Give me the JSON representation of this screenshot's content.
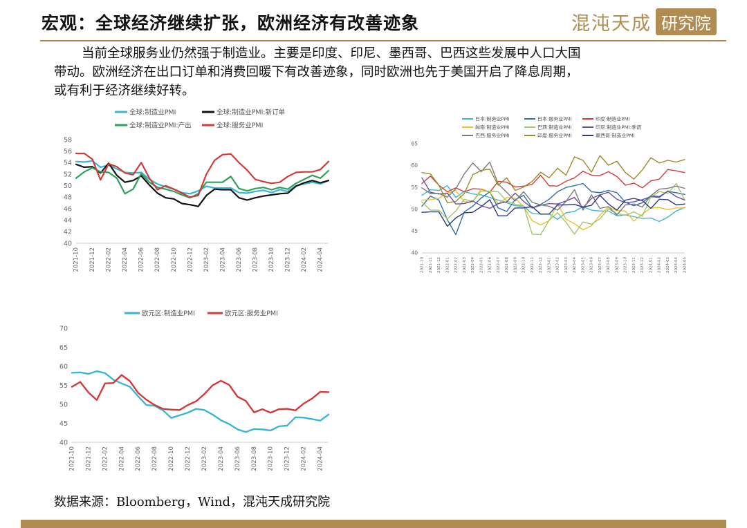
{
  "header": {
    "title": "宏观：全球经济继续扩张，欧洲经济有改善迹象",
    "logo_text": "混沌天成",
    "logo_box_text": "研究院"
  },
  "body_text": [
    "当前全球服务业仍然强于制造业。主要是印度、印尼、墨西哥、巴西这些发展中人口大国",
    "带动。欧洲经济在出口订单和消费回暖下有改善迹象，同时欧洲也先于美国开启了降息周期，",
    "或有利于经济继续好转。"
  ],
  "source": "数据来源：Bloomberg，Wind，混沌天成研究院",
  "colors": {
    "accent": "#b08c52"
  },
  "chart_data": [
    {
      "type": "line",
      "x": [
        "2021-10",
        "2021-11",
        "2021-12",
        "2022-01",
        "2022-02",
        "2022-03",
        "2022-04",
        "2022-05",
        "2022-06",
        "2022-07",
        "2022-08",
        "2022-09",
        "2022-10",
        "2022-11",
        "2022-12",
        "2023-01",
        "2023-02",
        "2023-03",
        "2023-04",
        "2023-05",
        "2023-06",
        "2023-07",
        "2023-08",
        "2023-09",
        "2023-10",
        "2023-11",
        "2023-12",
        "2024-01",
        "2024-02",
        "2024-03",
        "2024-04",
        "2024-05"
      ],
      "xticks": [
        "2021-10",
        "2021-12",
        "2022-02",
        "2022-04",
        "2022-06",
        "2022-08",
        "2022-10",
        "2022-12",
        "2023-02",
        "2023-04",
        "2023-06",
        "2023-08",
        "2023-10",
        "2023-12",
        "2024-02",
        "2024-04"
      ],
      "ylim": [
        40,
        58
      ],
      "yticks": [
        40,
        42,
        44,
        46,
        48,
        50,
        52,
        54,
        56,
        58
      ],
      "legend_placement": "top",
      "series": [
        {
          "name": "全球:制造业PMI",
          "color": "#3ab5d6",
          "values": [
            54.2,
            54.1,
            54.3,
            53.2,
            53.6,
            52.9,
            52.3,
            52.2,
            52.3,
            51.1,
            50.3,
            49.8,
            49.4,
            48.8,
            48.6,
            49.1,
            49.9,
            49.6,
            49.6,
            49.6,
            48.8,
            48.7,
            49.0,
            49.2,
            48.8,
            49.3,
            49.0,
            50.0,
            50.3,
            50.6,
            50.3,
            50.9
          ]
        },
        {
          "name": "全球:制造业PMI:新订单",
          "color": "#111111",
          "values": [
            53.7,
            53.2,
            53.3,
            52.2,
            53.9,
            51.8,
            50.6,
            50.9,
            51.7,
            50.1,
            48.7,
            47.9,
            47.7,
            46.9,
            46.7,
            46.4,
            48.3,
            49.4,
            49.3,
            49.3,
            47.9,
            47.5,
            47.9,
            48.2,
            48.4,
            48.6,
            48.7,
            49.9,
            50.5,
            50.9,
            50.5,
            50.9
          ]
        },
        {
          "name": "全球:制造业PMI:产出",
          "color": "#2ea05a",
          "values": [
            51.3,
            52.4,
            53.1,
            52.4,
            52.3,
            51.3,
            48.6,
            49.4,
            52.1,
            50.6,
            49.7,
            49.4,
            49.0,
            48.4,
            47.9,
            48.6,
            50.6,
            50.6,
            50.6,
            51.6,
            49.5,
            49.1,
            49.5,
            49.7,
            49.3,
            49.7,
            49.4,
            50.4,
            51.1,
            51.8,
            51.3,
            52.6
          ]
        },
        {
          "name": "全球:服务业PMI",
          "color": "#d23a3a",
          "values": [
            55.6,
            55.6,
            54.6,
            51.0,
            53.8,
            53.3,
            52.2,
            51.9,
            54.0,
            51.3,
            49.3,
            50.0,
            49.4,
            48.7,
            48.0,
            48.3,
            52.0,
            54.4,
            55.4,
            55.5,
            54.0,
            52.7,
            51.1,
            50.7,
            50.4,
            50.6,
            51.6,
            52.3,
            52.4,
            52.4,
            52.8,
            54.2
          ]
        }
      ]
    },
    {
      "type": "line",
      "x": [
        "2021-10",
        "2021-11",
        "2021-12",
        "2022-01",
        "2022-02",
        "2022-03",
        "2022-04",
        "2022-05",
        "2022-06",
        "2022-07",
        "2022-08",
        "2022-09",
        "2022-10",
        "2022-11",
        "2022-12",
        "2023-01",
        "2023-02",
        "2023-03",
        "2023-04",
        "2023-05",
        "2023-06",
        "2023-07",
        "2023-08",
        "2023-09",
        "2023-10",
        "2023-11",
        "2023-12",
        "2024-01",
        "2024-02",
        "2024-03",
        "2024-04",
        "2024-05"
      ],
      "xticks": [
        "2021-10",
        "2021-11",
        "2021-12",
        "2022-01",
        "2022-02",
        "2022-03",
        "2022-04",
        "2022-05",
        "2022-06",
        "2022-07",
        "2022-08",
        "2022-09",
        "2022-10",
        "2022-11",
        "2022-12",
        "2023-01",
        "2023-02",
        "2023-03",
        "2023-04",
        "2023-05",
        "2023-06",
        "2023-07",
        "2023-08",
        "2023-09",
        "2023-10",
        "2023-11",
        "2023-12",
        "2024-01",
        "2024-02",
        "2024-03",
        "2024-04",
        "2024-05"
      ],
      "ylim": [
        40,
        65
      ],
      "yticks": [
        40,
        45,
        50,
        55,
        60,
        65
      ],
      "legend_placement": "top",
      "series": [
        {
          "name": "日本:制造业PMI",
          "color": "#3ab5d6",
          "values": [
            53.2,
            54.5,
            54.3,
            55.4,
            52.7,
            54.1,
            53.5,
            53.3,
            52.7,
            52.1,
            51.5,
            50.8,
            50.7,
            49.0,
            48.9,
            48.9,
            47.7,
            49.2,
            49.5,
            50.6,
            49.8,
            49.6,
            49.6,
            48.5,
            48.7,
            48.3,
            47.9,
            48.0,
            47.2,
            48.2,
            49.6,
            50.4
          ]
        },
        {
          "name": "日本:服务业PMI",
          "color": "#2a6fa8",
          "values": [
            50.7,
            53.0,
            52.1,
            47.6,
            44.2,
            49.4,
            50.7,
            52.6,
            54.0,
            50.3,
            49.5,
            52.2,
            53.2,
            50.3,
            51.1,
            52.3,
            54.0,
            55.0,
            55.4,
            55.9,
            54.0,
            53.8,
            54.3,
            53.8,
            51.6,
            50.8,
            51.5,
            53.1,
            52.9,
            54.1,
            53.8,
            53.4
          ]
        },
        {
          "name": "印度:制造业PMI",
          "color": "#d23a3a",
          "values": [
            55.9,
            57.6,
            55.5,
            54.0,
            54.9,
            54.0,
            54.7,
            54.6,
            53.9,
            56.4,
            56.2,
            55.1,
            55.3,
            55.7,
            57.8,
            55.4,
            55.3,
            56.4,
            57.2,
            58.7,
            57.8,
            57.7,
            58.6,
            57.5,
            55.5,
            56.0,
            54.9,
            56.5,
            56.9,
            59.1,
            58.8,
            58.4
          ]
        },
        {
          "name": "越南:制造业PMI",
          "color": "#e8c32a",
          "values": [
            52.1,
            52.2,
            52.5,
            53.7,
            54.3,
            51.7,
            51.7,
            54.7,
            54.0,
            51.2,
            52.7,
            52.5,
            50.6,
            47.4,
            46.4,
            47.4,
            51.2,
            47.7,
            46.7,
            45.3,
            46.2,
            48.7,
            50.5,
            49.7,
            49.6,
            47.3,
            48.9,
            50.3,
            50.4,
            49.9,
            50.3,
            50.3
          ]
        },
        {
          "name": "巴西:制造业PMI",
          "color": "#9fc66a",
          "values": [
            51.7,
            49.8,
            49.8,
            47.8,
            49.6,
            52.3,
            51.8,
            54.2,
            54.1,
            54.0,
            51.9,
            51.1,
            50.8,
            44.3,
            44.2,
            47.5,
            49.2,
            47.0,
            44.3,
            47.1,
            46.6,
            47.8,
            50.1,
            49.0,
            48.6,
            49.4,
            48.4,
            52.8,
            54.1,
            53.6,
            55.9,
            52.1
          ]
        },
        {
          "name": "印尼:制造业PMI:季调",
          "color": "#6a4fa0",
          "values": [
            57.2,
            53.9,
            53.5,
            53.7,
            51.2,
            51.3,
            51.9,
            50.8,
            50.2,
            51.3,
            51.7,
            53.7,
            51.8,
            50.3,
            50.9,
            51.3,
            51.2,
            51.9,
            52.7,
            50.3,
            52.5,
            53.3,
            53.9,
            52.3,
            51.5,
            51.7,
            52.2,
            52.9,
            52.7,
            54.2,
            52.9,
            52.1
          ]
        },
        {
          "name": "巴西:服务业PMI",
          "color": "#7a7a7a",
          "values": [
            54.9,
            53.6,
            53.6,
            52.8,
            54.7,
            58.1,
            60.6,
            58.6,
            60.8,
            55.8,
            53.9,
            51.9,
            54.0,
            51.6,
            51.0,
            50.7,
            49.8,
            51.8,
            54.5,
            49.8,
            53.3,
            50.2,
            50.6,
            48.7,
            51.0,
            51.2,
            50.5,
            53.1,
            54.6,
            54.8,
            55.3,
            54.8
          ]
        },
        {
          "name": "印度:服务业PMI",
          "color": "#9b8a2a",
          "values": [
            58.4,
            58.1,
            55.5,
            51.5,
            51.8,
            53.6,
            57.9,
            58.9,
            59.2,
            55.5,
            57.2,
            54.3,
            55.1,
            56.4,
            58.5,
            57.2,
            59.4,
            57.8,
            62.0,
            61.2,
            58.5,
            62.3,
            60.1,
            61.0,
            58.4,
            56.9,
            59.0,
            61.8,
            60.6,
            61.2,
            60.8,
            61.4
          ]
        },
        {
          "name": "墨西哥:制造业PMI",
          "color": "#2a3a7a",
          "values": [
            49.3,
            49.4,
            49.4,
            46.1,
            48.0,
            49.2,
            49.3,
            50.6,
            52.2,
            48.5,
            48.5,
            50.3,
            50.3,
            50.6,
            48.9,
            48.9,
            51.0,
            51.0,
            51.1,
            50.5,
            50.9,
            53.2,
            51.2,
            49.8,
            52.1,
            52.5,
            52.0,
            50.2,
            52.3,
            52.2,
            51.0,
            51.2
          ]
        }
      ]
    },
    {
      "type": "line",
      "x": [
        "2021-10",
        "2021-11",
        "2021-12",
        "2022-01",
        "2022-02",
        "2022-03",
        "2022-04",
        "2022-05",
        "2022-06",
        "2022-07",
        "2022-08",
        "2022-09",
        "2022-10",
        "2022-11",
        "2022-12",
        "2023-01",
        "2023-02",
        "2023-03",
        "2023-04",
        "2023-05",
        "2023-06",
        "2023-07",
        "2023-08",
        "2023-09",
        "2023-10",
        "2023-11",
        "2023-12",
        "2024-01",
        "2024-02",
        "2024-03",
        "2024-04",
        "2024-05"
      ],
      "xticks": [
        "2021-10",
        "2021-12",
        "2022-02",
        "2022-04",
        "2022-06",
        "2022-08",
        "2022-10",
        "2022-12",
        "2023-02",
        "2023-04",
        "2023-06",
        "2023-08",
        "2023-10",
        "2023-12",
        "2024-02",
        "2024-04"
      ],
      "ylim": [
        40,
        70
      ],
      "yticks": [
        40,
        45,
        50,
        55,
        60,
        65,
        70
      ],
      "legend_placement": "top",
      "series": [
        {
          "name": "欧元区:制造业PMI",
          "color": "#3ab5d6",
          "values": [
            58.3,
            58.4,
            58.0,
            58.7,
            58.2,
            56.5,
            55.5,
            54.6,
            52.1,
            49.8,
            49.6,
            48.4,
            46.4,
            47.1,
            47.8,
            48.8,
            48.5,
            47.3,
            45.8,
            44.8,
            43.4,
            42.7,
            43.5,
            43.4,
            43.1,
            44.2,
            44.4,
            46.6,
            46.5,
            46.1,
            45.7,
            47.3
          ]
        },
        {
          "name": "欧元区:服务业PMI",
          "color": "#d23a3a",
          "values": [
            54.6,
            55.9,
            53.1,
            51.1,
            55.5,
            55.6,
            57.7,
            56.1,
            53.0,
            51.2,
            49.8,
            48.8,
            48.6,
            48.5,
            49.8,
            50.8,
            52.7,
            55.0,
            56.2,
            55.1,
            52.0,
            50.9,
            47.9,
            48.7,
            47.8,
            48.7,
            48.8,
            48.4,
            50.2,
            51.5,
            53.3,
            53.2
          ]
        }
      ]
    }
  ]
}
